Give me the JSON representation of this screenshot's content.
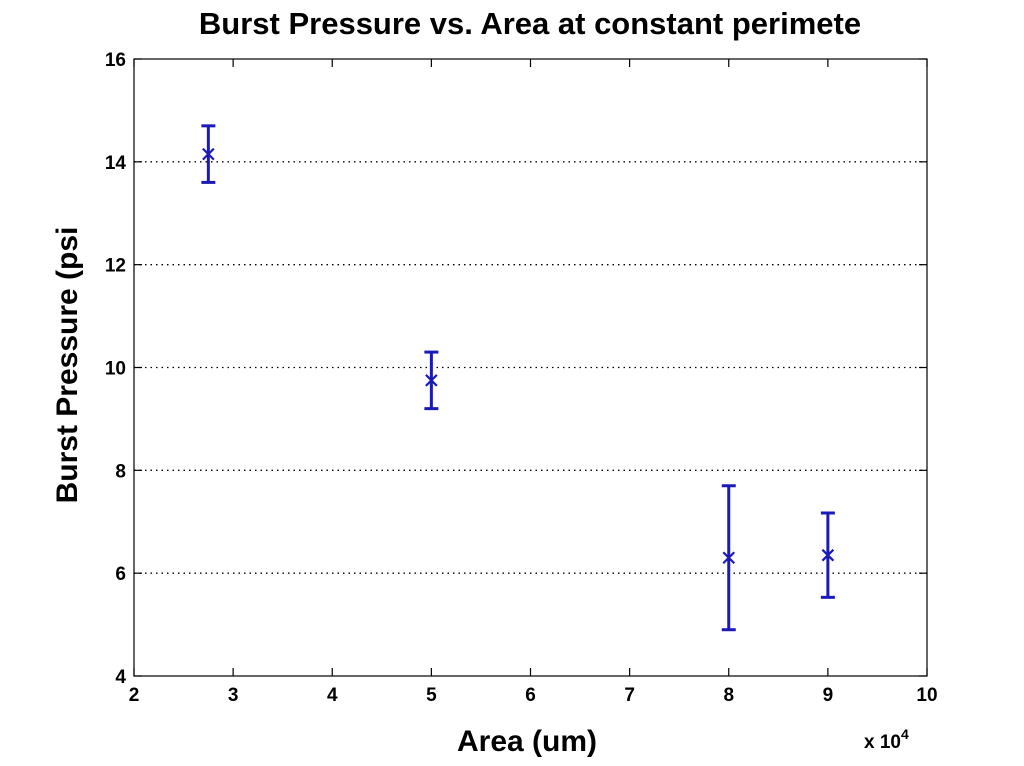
{
  "chart_data": {
    "type": "scatter",
    "title": "Burst Pressure vs. Area at constant perimete",
    "xlabel": "Area (um)",
    "ylabel": "Burst Pressure (psi",
    "x_multiplier_label": "x 10",
    "x_multiplier_exponent": "4",
    "xlim": [
      2,
      10
    ],
    "ylim": [
      4,
      16
    ],
    "xticks": [
      2,
      3,
      4,
      5,
      6,
      7,
      8,
      9,
      10
    ],
    "yticks": [
      4,
      6,
      8,
      10,
      12,
      14,
      16
    ],
    "grid": "y-dotted",
    "marker": "x",
    "series": [
      {
        "color": "#1a1ab8",
        "points": [
          {
            "x": 2.75,
            "y": 14.15,
            "err": 0.55
          },
          {
            "x": 5.0,
            "y": 9.75,
            "err": 0.55
          },
          {
            "x": 8.0,
            "y": 6.3,
            "err": 1.4
          },
          {
            "x": 9.0,
            "y": 6.35,
            "err": 0.82
          }
        ]
      }
    ]
  }
}
